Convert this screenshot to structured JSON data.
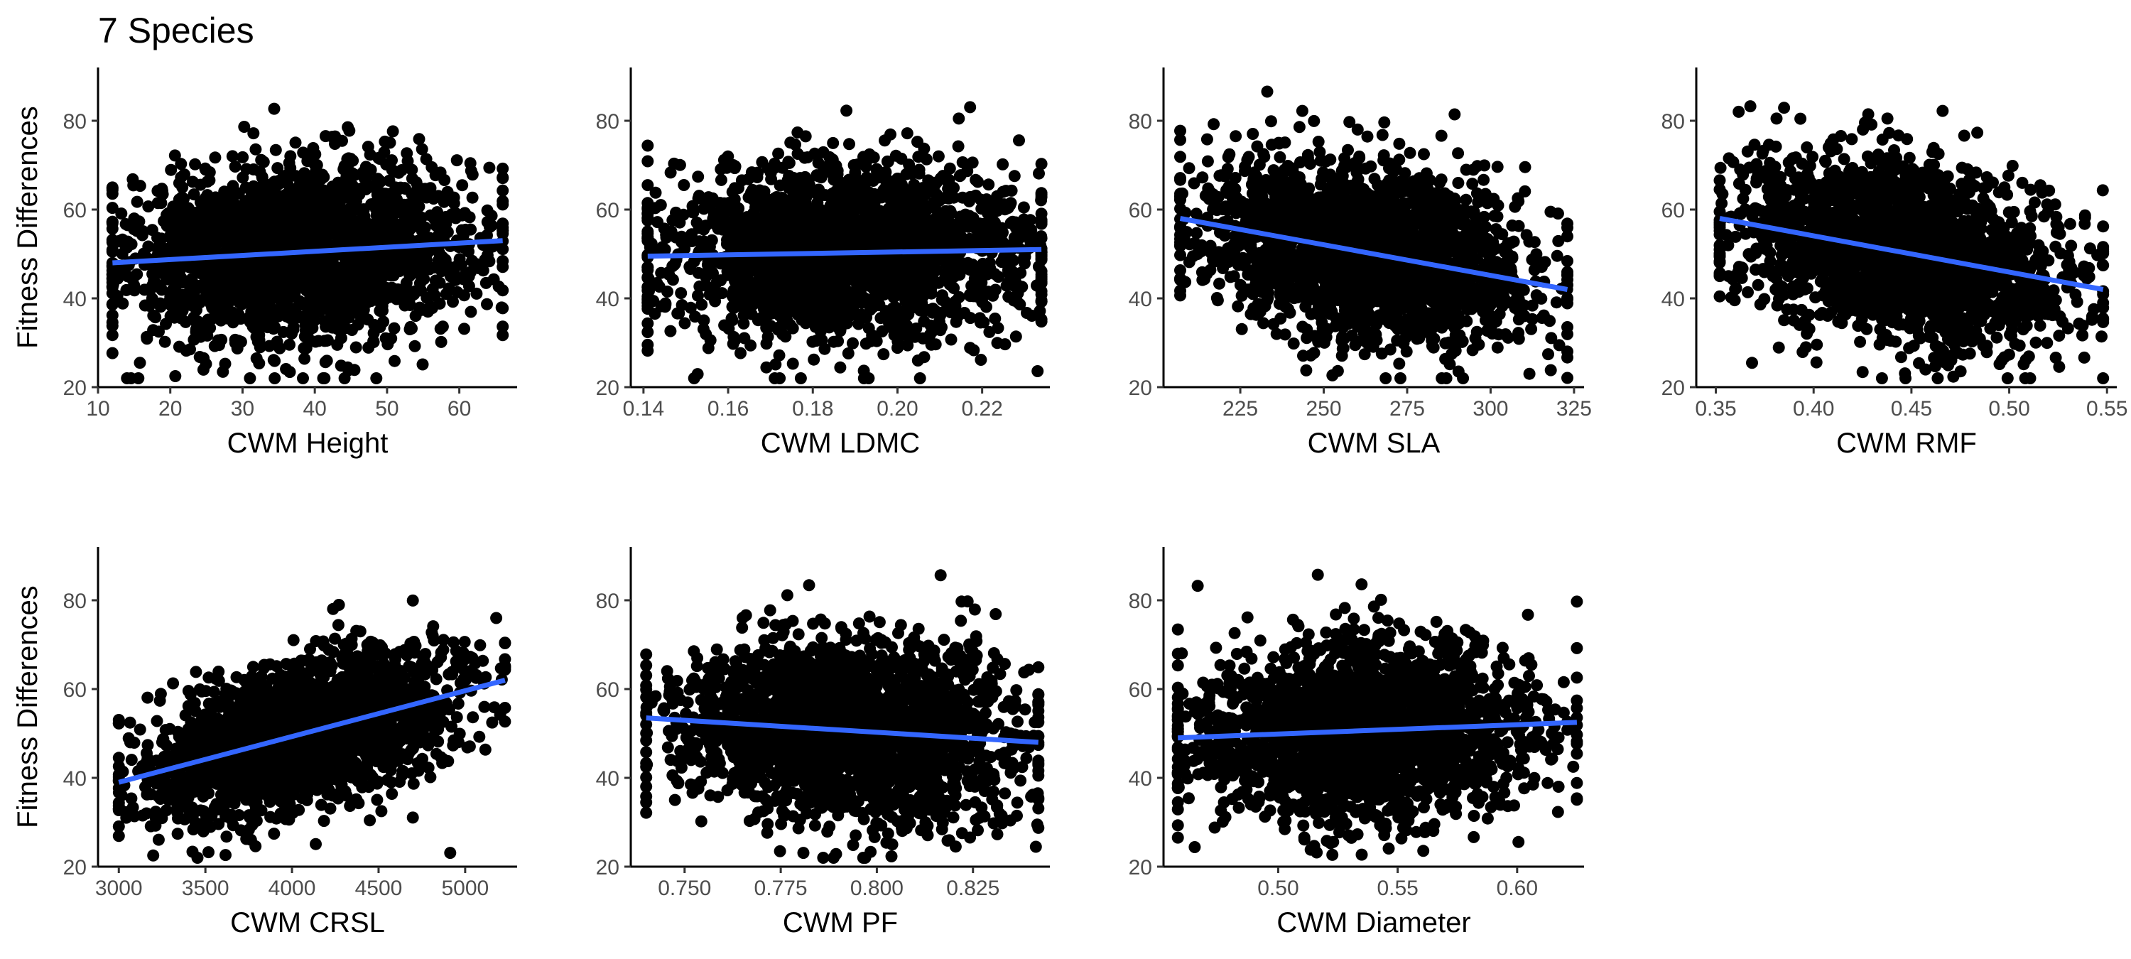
{
  "figure_title": "7 Species",
  "chart_data": [
    {
      "type": "scatter",
      "xlabel": "CWM Height",
      "ylabel": "Fitness Differences",
      "xlim": [
        10,
        68
      ],
      "ylim": [
        20,
        92
      ],
      "xticks": [
        "10",
        "20",
        "30",
        "40",
        "50",
        "60"
      ],
      "yticks": [
        "20",
        "40",
        "60",
        "80"
      ],
      "x_range": [
        12,
        66
      ],
      "y_range": [
        22,
        90
      ],
      "cloud_center": [
        38,
        52
      ],
      "cloud_spread": [
        12,
        10
      ],
      "point_color": "#000000",
      "fit_color": "#3366FF",
      "fit_line": {
        "x": [
          12,
          66
        ],
        "y": [
          48,
          53
        ]
      }
    },
    {
      "type": "scatter",
      "xlabel": "CWM LDMC",
      "ylabel": "",
      "xlim": [
        0.137,
        0.236
      ],
      "ylim": [
        20,
        92
      ],
      "xticks": [
        "0.14",
        "0.16",
        "0.18",
        "0.20",
        "0.22"
      ],
      "yticks": [
        "20",
        "40",
        "60",
        "80"
      ],
      "x_range": [
        0.141,
        0.234
      ],
      "y_range": [
        22,
        90
      ],
      "cloud_center": [
        0.188,
        52
      ],
      "cloud_spread": [
        0.022,
        10
      ],
      "point_color": "#000000",
      "fit_color": "#3366FF",
      "fit_line": {
        "x": [
          0.141,
          0.234
        ],
        "y": [
          49.5,
          51
        ]
      }
    },
    {
      "type": "scatter",
      "xlabel": "CWM SLA",
      "ylabel": "",
      "xlim": [
        202,
        328
      ],
      "ylim": [
        20,
        92
      ],
      "xticks": [
        "225",
        "250",
        "275",
        "300",
        "325"
      ],
      "yticks": [
        "20",
        "40",
        "60",
        "80"
      ],
      "x_range": [
        207,
        323
      ],
      "y_range": [
        22,
        90
      ],
      "cloud_center": [
        262,
        52
      ],
      "cloud_spread": [
        25,
        10
      ],
      "point_color": "#000000",
      "fit_color": "#3366FF",
      "fit_line": {
        "x": [
          207,
          323
        ],
        "y": [
          58,
          42
        ]
      }
    },
    {
      "type": "scatter",
      "xlabel": "CWM RMF",
      "ylabel": "",
      "xlim": [
        0.34,
        0.555
      ],
      "ylim": [
        20,
        92
      ],
      "xticks": [
        "0.35",
        "0.40",
        "0.45",
        "0.50",
        "0.55"
      ],
      "yticks": [
        "20",
        "40",
        "60",
        "80"
      ],
      "x_range": [
        0.352,
        0.548
      ],
      "y_range": [
        22,
        90
      ],
      "cloud_center": [
        0.445,
        52
      ],
      "cloud_spread": [
        0.042,
        10
      ],
      "point_color": "#000000",
      "fit_color": "#3366FF",
      "fit_line": {
        "x": [
          0.352,
          0.548
        ],
        "y": [
          58,
          42
        ]
      }
    },
    {
      "type": "scatter",
      "xlabel": "CWM CRSL",
      "ylabel": "Fitness Differences",
      "xlim": [
        2880,
        5300
      ],
      "ylim": [
        20,
        92
      ],
      "xticks": [
        "3000",
        "3500",
        "4000",
        "4500",
        "5000"
      ],
      "yticks": [
        "20",
        "40",
        "60",
        "80"
      ],
      "x_range": [
        3000,
        5230
      ],
      "y_range": [
        22,
        90
      ],
      "cloud_center": [
        4050,
        51
      ],
      "cloud_spread": [
        450,
        8
      ],
      "point_color": "#000000",
      "fit_color": "#3366FF",
      "fit_line": {
        "x": [
          3000,
          5230
        ],
        "y": [
          39,
          62
        ]
      }
    },
    {
      "type": "scatter",
      "xlabel": "CWM PF",
      "ylabel": "",
      "xlim": [
        0.736,
        0.845
      ],
      "ylim": [
        20,
        92
      ],
      "xticks": [
        "0.750",
        "0.775",
        "0.800",
        "0.825"
      ],
      "yticks": [
        "20",
        "40",
        "60",
        "80"
      ],
      "x_range": [
        0.74,
        0.842
      ],
      "y_range": [
        22,
        90
      ],
      "cloud_center": [
        0.793,
        52
      ],
      "cloud_spread": [
        0.022,
        10
      ],
      "point_color": "#000000",
      "fit_color": "#3366FF",
      "fit_line": {
        "x": [
          0.74,
          0.842
        ],
        "y": [
          53.5,
          48
        ]
      }
    },
    {
      "type": "scatter",
      "xlabel": "CWM Diameter",
      "ylabel": "",
      "xlim": [
        0.452,
        0.628
      ],
      "ylim": [
        20,
        92
      ],
      "xticks": [
        "0.50",
        "0.55",
        "0.60"
      ],
      "yticks": [
        "20",
        "40",
        "60",
        "80"
      ],
      "x_range": [
        0.458,
        0.625
      ],
      "y_range": [
        22,
        90
      ],
      "cloud_center": [
        0.535,
        51
      ],
      "cloud_spread": [
        0.035,
        10
      ],
      "point_color": "#000000",
      "fit_color": "#3366FF",
      "fit_line": {
        "x": [
          0.458,
          0.625
        ],
        "y": [
          49,
          52.5
        ]
      }
    }
  ]
}
